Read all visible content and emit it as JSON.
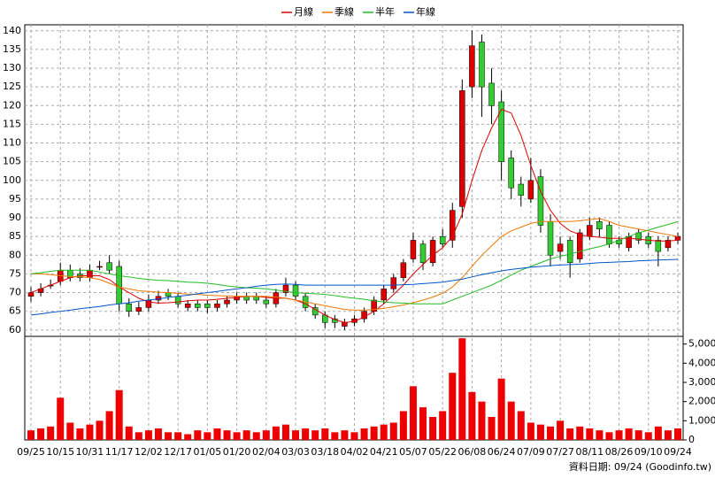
{
  "chart_data": {
    "type": "candlestick",
    "footer": "資料日期: 09/24 (Goodinfo.tw)",
    "categories": [
      "09/25",
      null,
      null,
      "10/15",
      null,
      null,
      "10/31",
      null,
      null,
      "11/17",
      null,
      null,
      "12/02",
      null,
      null,
      "12/17",
      null,
      null,
      "01/05",
      null,
      null,
      "01/20",
      null,
      null,
      "02/04",
      null,
      null,
      "03/03",
      null,
      null,
      "03/18",
      null,
      null,
      "04/02",
      null,
      null,
      "04/21",
      null,
      null,
      "05/07",
      null,
      null,
      "05/22",
      null,
      null,
      "06/08",
      null,
      null,
      "06/24",
      null,
      null,
      "07/09",
      null,
      null,
      "07/27",
      null,
      null,
      "08/11",
      null,
      null,
      "08/26",
      null,
      null,
      "09/10",
      null,
      null,
      "09/24"
    ],
    "up_color": "#dd0000",
    "down_color": "#33cc33",
    "open": [
      69,
      70,
      72,
      73,
      76,
      75,
      74,
      77,
      78,
      77,
      67,
      65,
      66,
      68,
      70,
      69,
      66,
      67,
      67,
      66,
      67,
      68,
      69,
      69,
      68,
      67,
      70,
      72,
      69,
      66,
      64,
      63,
      61,
      62,
      63,
      65,
      68,
      71,
      74,
      79,
      83,
      78,
      85,
      84,
      93,
      125,
      137,
      126,
      121,
      106,
      99,
      95,
      101,
      89,
      81,
      84,
      79,
      85,
      89,
      88,
      84,
      82,
      86,
      85,
      84,
      82,
      84
    ],
    "high": [
      71.5,
      72.5,
      73.5,
      78,
      77.5,
      76.5,
      77.5,
      78.5,
      80,
      78.5,
      68.5,
      67.5,
      69.5,
      70.5,
      71,
      70,
      68,
      68,
      68,
      68,
      69,
      70,
      70,
      70,
      69,
      71,
      74,
      73,
      70,
      67,
      65,
      64,
      63,
      64,
      66,
      69,
      72,
      75,
      79,
      86,
      84,
      85,
      87,
      94,
      127,
      140,
      139,
      130,
      124,
      108,
      101,
      106,
      103,
      91,
      85,
      85,
      87,
      90,
      90,
      89,
      85,
      86,
      87,
      86,
      85,
      85,
      86
    ],
    "low": [
      67.5,
      69,
      71,
      72,
      73,
      73,
      73,
      76,
      75,
      65,
      63.5,
      64,
      65,
      67,
      68,
      66,
      65,
      65,
      64.5,
      65,
      66,
      67,
      67,
      67,
      66,
      66,
      69,
      68,
      65,
      63,
      60.5,
      60.5,
      60,
      61,
      62,
      64,
      67,
      70,
      73,
      78,
      76,
      77,
      82,
      82,
      90,
      122,
      117,
      115,
      100,
      95,
      93,
      94,
      86,
      77,
      79,
      74,
      78,
      84,
      85,
      82,
      82,
      81,
      83,
      82,
      77,
      81,
      83
    ],
    "close": [
      70,
      71,
      72,
      76,
      74,
      74,
      76,
      77,
      76,
      67,
      65,
      66,
      68,
      69,
      69,
      67,
      67,
      66,
      66,
      67,
      68,
      69,
      68,
      68,
      67,
      70,
      72,
      69,
      66,
      64,
      62,
      62,
      62,
      63,
      65,
      68,
      71,
      74,
      78,
      84,
      78,
      84,
      83,
      92,
      124,
      136,
      125,
      120,
      105,
      98,
      96,
      100,
      88,
      80,
      83,
      78,
      86,
      88,
      87,
      83,
      83,
      85,
      84,
      83,
      81,
      84,
      85
    ],
    "ylim": [
      58.3,
      141.6
    ],
    "yticks": [
      60,
      65,
      70,
      75,
      80,
      85,
      90,
      95,
      100,
      105,
      110,
      115,
      120,
      125,
      130,
      135,
      140
    ],
    "series": [
      {
        "name": "月線",
        "color": "#dd0000",
        "values": [
          70,
          71,
          72,
          73,
          74,
          74.5,
          74.5,
          74.5,
          73.5,
          71.5,
          70,
          68.5,
          67.5,
          67.2,
          67.3,
          67.5,
          67.8,
          68,
          68,
          68.2,
          68.5,
          68.7,
          69,
          69,
          68.7,
          68.5,
          68.5,
          68,
          67,
          65.5,
          64,
          62.8,
          62,
          62.3,
          63.5,
          65,
          67,
          69.5,
          72,
          75,
          77.5,
          80,
          82,
          85,
          91,
          100,
          108,
          114,
          119,
          118,
          112,
          104,
          97,
          92,
          88.5,
          86.5,
          85.5,
          85,
          84.8,
          84.5,
          84.5,
          84.5,
          84.3,
          84,
          83.8,
          83.8,
          84
        ]
      },
      {
        "name": "季線",
        "color": "#ee7700",
        "values": [
          75,
          75,
          74.8,
          74.5,
          74.3,
          74.2,
          74,
          73.5,
          72.5,
          71.5,
          71,
          70.5,
          70.3,
          70.1,
          70,
          69.8,
          69.6,
          69.5,
          69.3,
          69.2,
          69.1,
          69,
          69,
          69,
          69,
          68.8,
          68.5,
          68,
          67.5,
          67,
          66.5,
          66,
          65.5,
          65.3,
          65.3,
          65.5,
          65.8,
          66.2,
          66.7,
          67.3,
          68,
          68.8,
          69.8,
          71.5,
          74,
          77,
          80,
          82.5,
          85,
          86.5,
          87.5,
          88.5,
          89,
          89,
          89,
          89,
          89.2,
          89.5,
          89.8,
          89,
          88,
          87.5,
          87,
          86.5,
          86,
          85.5,
          85
        ]
      },
      {
        "name": "半年",
        "color": "#22bb22",
        "values": [
          75,
          75.3,
          75.7,
          76,
          76,
          76,
          76,
          75.5,
          75,
          74.5,
          74.2,
          73.8,
          73.5,
          73.3,
          73.2,
          73,
          72.8,
          72.7,
          72.5,
          72.2,
          71.8,
          71.5,
          71.3,
          71.2,
          71,
          70.7,
          70.3,
          70,
          69.8,
          69.7,
          69.5,
          69.2,
          68.8,
          68.5,
          68.2,
          67.8,
          67.5,
          67.3,
          67.2,
          67,
          67,
          67,
          67,
          68,
          69,
          70,
          71,
          72,
          73.3,
          74.7,
          76,
          77,
          78,
          79,
          79.7,
          80.3,
          81,
          81.7,
          82.3,
          83,
          84,
          85,
          86,
          86.7,
          87.5,
          88.2,
          89
        ]
      },
      {
        "name": "年線",
        "color": "#0055cc",
        "values": [
          64,
          64.3,
          64.7,
          65,
          65.3,
          65.7,
          66,
          66.3,
          66.7,
          67,
          67.3,
          67.7,
          68,
          68.3,
          68.7,
          69,
          69.3,
          69.7,
          70,
          70.3,
          70.7,
          71,
          71.3,
          71.7,
          72,
          72.2,
          72.3,
          72.2,
          72,
          72,
          72,
          72,
          72,
          72,
          72,
          72,
          72,
          72,
          72.1,
          72.2,
          72.4,
          72.6,
          72.8,
          73.2,
          73.6,
          74.2,
          74.8,
          75.3,
          75.8,
          76.2,
          76.5,
          76.8,
          77,
          77.2,
          77.4,
          77.5,
          77.6,
          77.8,
          78,
          78.1,
          78.2,
          78.3,
          78.5,
          78.6,
          78.7,
          78.8,
          78.9
        ]
      }
    ],
    "volume": {
      "color": "#ee0000",
      "values": [
        500,
        600,
        700,
        2200,
        900,
        600,
        800,
        1000,
        1500,
        2600,
        700,
        400,
        500,
        600,
        400,
        400,
        300,
        500,
        400,
        600,
        500,
        400,
        500,
        400,
        500,
        700,
        800,
        500,
        600,
        500,
        600,
        400,
        500,
        400,
        600,
        700,
        800,
        900,
        1500,
        2800,
        1700,
        1200,
        1500,
        3500,
        5300,
        2500,
        2000,
        1200,
        3200,
        2000,
        1500,
        900,
        800,
        700,
        1000,
        600,
        700,
        600,
        500,
        400,
        500,
        600,
        500,
        400,
        700,
        500,
        600
      ],
      "ylim": [
        0,
        5400
      ],
      "yticks": [
        0,
        {
          "value": 1000,
          "label": "1,000"
        },
        {
          "value": 2000,
          "label": "2,000"
        },
        {
          "value": 3000,
          "label": "3,000"
        },
        {
          "value": 4000,
          "label": "4,000"
        },
        {
          "value": 5000,
          "label": "5,000"
        }
      ]
    },
    "grid": true
  }
}
